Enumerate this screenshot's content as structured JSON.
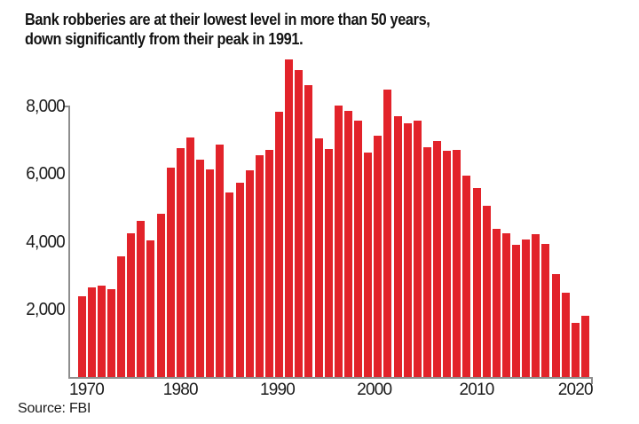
{
  "title": {
    "line1": "Bank robberies are at their lowest level in more than 50 years,",
    "line2": "down significantly from their peak in 1991."
  },
  "source_label": "Source: FBI",
  "colors": {
    "bar": "#e2232a",
    "title_text": "#131313",
    "axis_text": "#1b1b1b",
    "axis_line": "#8e8e8e",
    "background": "#ffffff"
  },
  "chart_data": {
    "type": "bar",
    "title": "Bank robberies are at their lowest level in more than 50 years, down significantly from their peak in 1991.",
    "source": "FBI",
    "xlabel": "",
    "ylabel": "",
    "grid": false,
    "legend": false,
    "ylim": [
      0,
      9500
    ],
    "yticks": [
      "2,000",
      "4,000",
      "6,000",
      "8,000"
    ],
    "xticks": [
      "1970",
      "1980",
      "1990",
      "2000",
      "2010",
      "2020"
    ],
    "categories": [
      1970,
      1971,
      1972,
      1973,
      1974,
      1975,
      1976,
      1977,
      1978,
      1979,
      1980,
      1981,
      1982,
      1983,
      1984,
      1985,
      1986,
      1987,
      1988,
      1989,
      1990,
      1991,
      1992,
      1993,
      1994,
      1995,
      1996,
      1997,
      1998,
      1999,
      2000,
      2001,
      2002,
      2003,
      2004,
      2005,
      2006,
      2007,
      2008,
      2009,
      2010,
      2011,
      2012,
      2013,
      2014,
      2015,
      2016,
      2017,
      2018,
      2019,
      2020,
      2021
    ],
    "values": [
      2400,
      2650,
      2690,
      2600,
      3580,
      4260,
      4610,
      4050,
      4830,
      6180,
      6770,
      7070,
      6420,
      6140,
      6880,
      5460,
      5750,
      6120,
      6570,
      6720,
      7850,
      9400,
      9070,
      8640,
      7050,
      6750,
      8030,
      7880,
      7570,
      6630,
      7140,
      8490,
      7710,
      7490,
      7590,
      6790,
      6980,
      6700,
      6720,
      5960,
      5600,
      5050,
      4370,
      4240,
      3910,
      4060,
      4230,
      3930,
      3040,
      2490,
      1590,
      1820
    ]
  }
}
